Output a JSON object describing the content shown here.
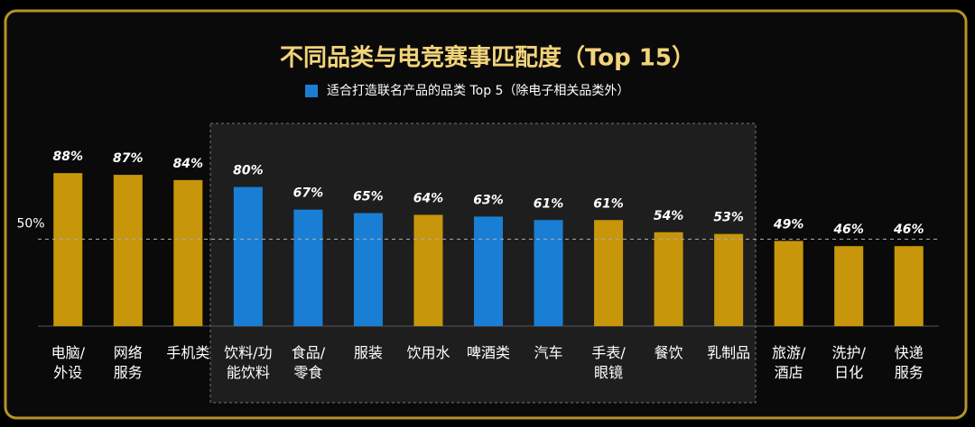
{
  "chart_data": {
    "type": "bar",
    "title": "不同品类与电竞赛事匹配度（Top 15）",
    "legend": {
      "label": "适合打造联名产品的品类 Top 5（除电子相关品类外）",
      "color": "#1a7fd4"
    },
    "categories": [
      "电脑/\n外设",
      "网络\n服务",
      "手机类",
      "饮料/功\n能饮料",
      "食品/\n零食",
      "服装",
      "饮用水",
      "啤酒类",
      "汽车",
      "手表/\n眼镜",
      "餐饮",
      "乳制品",
      "旅游/\n酒店",
      "洗护/\n日化",
      "快递\n服务"
    ],
    "values": [
      88,
      87,
      84,
      80,
      67,
      65,
      64,
      63,
      61,
      61,
      54,
      53,
      49,
      46,
      46
    ],
    "value_labels": [
      "88%",
      "87%",
      "84%",
      "80%",
      "67%",
      "65%",
      "64%",
      "63%",
      "61%",
      "61%",
      "54%",
      "53%",
      "49%",
      "46%",
      "46%"
    ],
    "colors": [
      "#c8960a",
      "#c8960a",
      "#c8960a",
      "#1a7fd4",
      "#1a7fd4",
      "#1a7fd4",
      "#c8960a",
      "#1a7fd4",
      "#1a7fd4",
      "#c8960a",
      "#c8960a",
      "#c8960a",
      "#c8960a",
      "#c8960a",
      "#c8960a"
    ],
    "ylim": [
      0,
      100
    ],
    "reference_line": {
      "value": 50,
      "label": "50%"
    }
  }
}
